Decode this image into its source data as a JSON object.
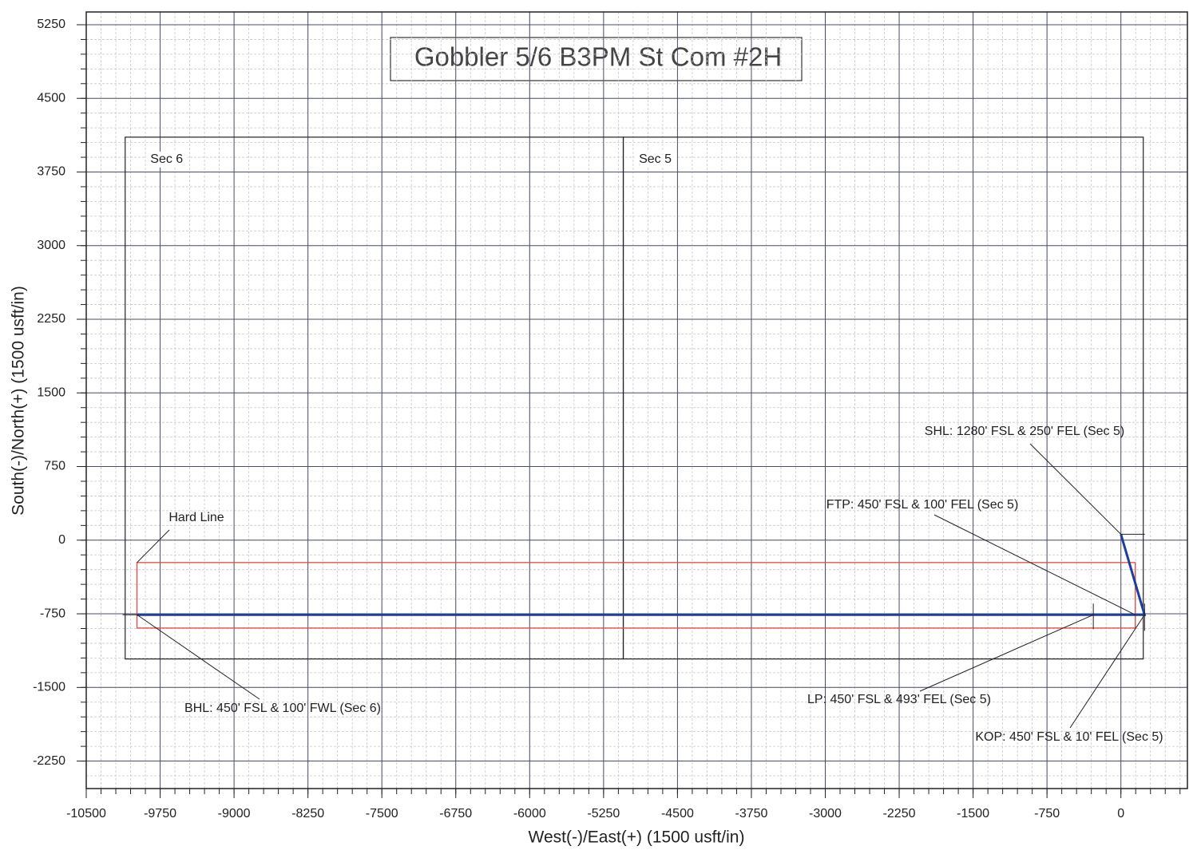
{
  "chart_data": {
    "type": "plan-view",
    "title": "Gobbler 5/6 B3PM St Com #2H",
    "x_label": "West(-)/East(+) (1500 usft/in)",
    "y_label": "South(-)/North(+) (1500 usft/in)",
    "xlim": [
      -10500,
      675
    ],
    "ylim": [
      -2530,
      5380
    ],
    "xticks": [
      -10500,
      -9750,
      -9000,
      -8250,
      -7500,
      -6750,
      -6000,
      -5250,
      -4500,
      -3750,
      -3000,
      -2250,
      -1500,
      -750,
      0
    ],
    "yticks": [
      -2250,
      -1500,
      -750,
      0,
      750,
      1500,
      2250,
      3000,
      3750,
      4500,
      5250
    ],
    "grid": true,
    "sections": [
      {
        "label": "Sec 6",
        "x": [
          -10105,
          -5050
        ],
        "y": [
          -1210,
          4105
        ]
      },
      {
        "label": "Sec 5",
        "x": [
          -5050,
          227
        ],
        "y": [
          -1210,
          4105
        ]
      }
    ],
    "hard_line": {
      "label": "Hard Line",
      "color": "#e8483c",
      "x": [
        -9985,
        146
      ],
      "y": [
        -895,
        -228
      ]
    },
    "wellbore": {
      "color": "#1d3f9a",
      "x": [
        0,
        240,
        -280,
        -9985
      ],
      "y": [
        60,
        -760,
        -760,
        -760
      ]
    },
    "annotations": [
      "SHL: 1280' FSL & 250' FEL (Sec 5)",
      "FTP: 450' FSL & 100' FEL (Sec 5)",
      "LP: 450' FSL & 493' FEL (Sec 5)",
      "KOP: 450' FSL & 10' FEL (Sec 5)",
      "BHL: 450' FSL & 100' FWL (Sec 6)"
    ]
  }
}
